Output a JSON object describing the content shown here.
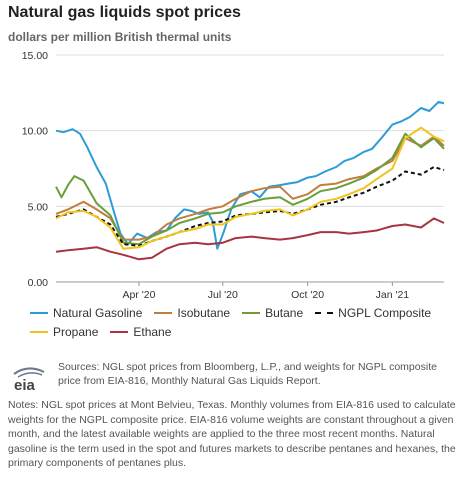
{
  "header": {
    "title": "Natural gas liquids spot prices",
    "subtitle": "dollars per million British thermal units"
  },
  "chart_data": {
    "type": "line",
    "title": "Natural gas liquids spot prices",
    "ylabel": "dollars per million British thermal units",
    "ylim": [
      0,
      15
    ],
    "yticks": [
      "0.00",
      "5.00",
      "10.00",
      "15.00"
    ],
    "xticks": [
      {
        "label": "Apr '20",
        "date": "2020-04-01"
      },
      {
        "label": "Jul '20",
        "date": "2020-07-01"
      },
      {
        "label": "Oct '20",
        "date": "2020-10-01"
      },
      {
        "label": "Jan '21",
        "date": "2021-01-01"
      }
    ],
    "xlim": [
      "2020-01-02",
      "2021-02-26"
    ],
    "grid": "horizontal",
    "legend_position": "bottom",
    "series": [
      {
        "name": "Natural Gasoline",
        "color": "#2c9cd6",
        "dash": "solid",
        "points": [
          [
            "2020-01-02",
            10.0
          ],
          [
            "2020-01-10",
            9.9
          ],
          [
            "2020-01-20",
            10.1
          ],
          [
            "2020-01-28",
            9.8
          ],
          [
            "2020-02-05",
            8.9
          ],
          [
            "2020-02-15",
            7.6
          ],
          [
            "2020-02-25",
            6.5
          ],
          [
            "2020-03-05",
            4.6
          ],
          [
            "2020-03-12",
            3.2
          ],
          [
            "2020-03-20",
            2.5
          ],
          [
            "2020-03-30",
            3.2
          ],
          [
            "2020-04-10",
            2.9
          ],
          [
            "2020-04-20",
            3.3
          ],
          [
            "2020-05-01",
            3.4
          ],
          [
            "2020-05-10",
            4.2
          ],
          [
            "2020-05-20",
            4.8
          ],
          [
            "2020-05-28",
            4.7
          ],
          [
            "2020-06-05",
            4.5
          ],
          [
            "2020-06-15",
            4.6
          ],
          [
            "2020-06-20",
            4.0
          ],
          [
            "2020-06-25",
            2.2
          ],
          [
            "2020-07-02",
            3.3
          ],
          [
            "2020-07-10",
            4.8
          ],
          [
            "2020-07-20",
            5.8
          ],
          [
            "2020-08-01",
            6.0
          ],
          [
            "2020-08-10",
            5.6
          ],
          [
            "2020-08-20",
            6.3
          ],
          [
            "2020-09-01",
            6.4
          ],
          [
            "2020-09-10",
            6.5
          ],
          [
            "2020-09-20",
            6.6
          ],
          [
            "2020-10-01",
            6.9
          ],
          [
            "2020-10-10",
            7.0
          ],
          [
            "2020-10-20",
            7.3
          ],
          [
            "2020-11-01",
            7.6
          ],
          [
            "2020-11-10",
            8.0
          ],
          [
            "2020-11-20",
            8.2
          ],
          [
            "2020-12-01",
            8.6
          ],
          [
            "2020-12-10",
            8.8
          ],
          [
            "2020-12-20",
            9.5
          ],
          [
            "2021-01-01",
            10.4
          ],
          [
            "2021-01-10",
            10.6
          ],
          [
            "2021-01-20",
            10.9
          ],
          [
            "2021-02-01",
            11.5
          ],
          [
            "2021-02-10",
            11.3
          ],
          [
            "2021-02-20",
            11.9
          ],
          [
            "2021-02-26",
            11.8
          ]
        ]
      },
      {
        "name": "Isobutane",
        "color": "#c27d3f",
        "dash": "solid",
        "points": [
          [
            "2020-01-02",
            4.5
          ],
          [
            "2020-01-15",
            4.8
          ],
          [
            "2020-02-01",
            5.3
          ],
          [
            "2020-02-15",
            4.8
          ],
          [
            "2020-03-01",
            4.2
          ],
          [
            "2020-03-15",
            2.8
          ],
          [
            "2020-04-01",
            2.8
          ],
          [
            "2020-04-15",
            3.0
          ],
          [
            "2020-05-01",
            3.8
          ],
          [
            "2020-05-15",
            4.2
          ],
          [
            "2020-06-01",
            4.5
          ],
          [
            "2020-06-15",
            4.8
          ],
          [
            "2020-07-01",
            5.0
          ],
          [
            "2020-07-15",
            5.5
          ],
          [
            "2020-08-01",
            6.0
          ],
          [
            "2020-08-15",
            6.2
          ],
          [
            "2020-09-01",
            6.3
          ],
          [
            "2020-09-15",
            5.5
          ],
          [
            "2020-10-01",
            5.8
          ],
          [
            "2020-10-15",
            6.4
          ],
          [
            "2020-11-01",
            6.5
          ],
          [
            "2020-11-15",
            6.8
          ],
          [
            "2020-12-01",
            7.0
          ],
          [
            "2020-12-15",
            7.5
          ],
          [
            "2021-01-01",
            8.0
          ],
          [
            "2021-01-15",
            9.5
          ],
          [
            "2021-02-01",
            9.0
          ],
          [
            "2021-02-15",
            9.6
          ],
          [
            "2021-02-26",
            9.0
          ]
        ]
      },
      {
        "name": "Butane",
        "color": "#6a9e3b",
        "dash": "solid",
        "points": [
          [
            "2020-01-02",
            6.3
          ],
          [
            "2020-01-08",
            5.6
          ],
          [
            "2020-01-15",
            6.4
          ],
          [
            "2020-01-22",
            7.0
          ],
          [
            "2020-02-01",
            6.7
          ],
          [
            "2020-02-15",
            5.2
          ],
          [
            "2020-03-01",
            4.4
          ],
          [
            "2020-03-15",
            2.6
          ],
          [
            "2020-04-01",
            2.5
          ],
          [
            "2020-04-15",
            3.0
          ],
          [
            "2020-05-01",
            3.4
          ],
          [
            "2020-05-15",
            3.9
          ],
          [
            "2020-06-01",
            4.2
          ],
          [
            "2020-06-15",
            4.5
          ],
          [
            "2020-07-01",
            4.6
          ],
          [
            "2020-07-15",
            5.0
          ],
          [
            "2020-08-01",
            5.3
          ],
          [
            "2020-08-15",
            5.5
          ],
          [
            "2020-09-01",
            5.6
          ],
          [
            "2020-09-15",
            5.1
          ],
          [
            "2020-10-01",
            5.5
          ],
          [
            "2020-10-15",
            6.0
          ],
          [
            "2020-11-01",
            6.2
          ],
          [
            "2020-11-15",
            6.5
          ],
          [
            "2020-12-01",
            6.9
          ],
          [
            "2020-12-15",
            7.4
          ],
          [
            "2021-01-01",
            8.2
          ],
          [
            "2021-01-15",
            9.8
          ],
          [
            "2021-02-01",
            8.9
          ],
          [
            "2021-02-15",
            9.5
          ],
          [
            "2021-02-26",
            8.8
          ]
        ]
      },
      {
        "name": "NGPL Composite",
        "color": "#111111",
        "dash": "dashed",
        "points": [
          [
            "2020-01-02",
            4.3
          ],
          [
            "2020-01-15",
            4.5
          ],
          [
            "2020-02-01",
            4.8
          ],
          [
            "2020-02-15",
            4.3
          ],
          [
            "2020-03-01",
            3.8
          ],
          [
            "2020-03-15",
            2.5
          ],
          [
            "2020-04-01",
            2.4
          ],
          [
            "2020-04-15",
            2.7
          ],
          [
            "2020-05-01",
            3.0
          ],
          [
            "2020-05-15",
            3.3
          ],
          [
            "2020-06-01",
            3.7
          ],
          [
            "2020-06-15",
            3.9
          ],
          [
            "2020-07-01",
            4.0
          ],
          [
            "2020-07-15",
            4.4
          ],
          [
            "2020-08-01",
            4.5
          ],
          [
            "2020-08-15",
            4.6
          ],
          [
            "2020-09-01",
            4.7
          ],
          [
            "2020-09-15",
            4.5
          ],
          [
            "2020-10-01",
            4.8
          ],
          [
            "2020-10-15",
            5.1
          ],
          [
            "2020-11-01",
            5.3
          ],
          [
            "2020-11-15",
            5.6
          ],
          [
            "2020-12-01",
            5.9
          ],
          [
            "2020-12-15",
            6.3
          ],
          [
            "2021-01-01",
            6.7
          ],
          [
            "2021-01-15",
            7.3
          ],
          [
            "2021-02-01",
            7.1
          ],
          [
            "2021-02-15",
            7.6
          ],
          [
            "2021-02-26",
            7.4
          ]
        ]
      },
      {
        "name": "Propane",
        "color": "#f0c419",
        "dash": "solid",
        "points": [
          [
            "2020-01-02",
            4.2
          ],
          [
            "2020-01-15",
            4.6
          ],
          [
            "2020-02-01",
            4.7
          ],
          [
            "2020-02-15",
            4.3
          ],
          [
            "2020-03-01",
            3.6
          ],
          [
            "2020-03-15",
            2.2
          ],
          [
            "2020-04-01",
            2.3
          ],
          [
            "2020-04-15",
            2.7
          ],
          [
            "2020-05-01",
            3.0
          ],
          [
            "2020-05-15",
            3.3
          ],
          [
            "2020-06-01",
            3.5
          ],
          [
            "2020-06-15",
            3.8
          ],
          [
            "2020-07-01",
            3.8
          ],
          [
            "2020-07-15",
            4.3
          ],
          [
            "2020-08-01",
            4.5
          ],
          [
            "2020-08-15",
            4.7
          ],
          [
            "2020-09-01",
            4.8
          ],
          [
            "2020-09-15",
            4.4
          ],
          [
            "2020-10-01",
            4.8
          ],
          [
            "2020-10-15",
            5.3
          ],
          [
            "2020-11-01",
            5.5
          ],
          [
            "2020-11-15",
            5.8
          ],
          [
            "2020-12-01",
            6.2
          ],
          [
            "2020-12-15",
            6.8
          ],
          [
            "2021-01-01",
            7.5
          ],
          [
            "2021-01-15",
            9.5
          ],
          [
            "2021-02-01",
            10.2
          ],
          [
            "2021-02-15",
            9.6
          ],
          [
            "2021-02-26",
            9.3
          ]
        ]
      },
      {
        "name": "Ethane",
        "color": "#a8343f",
        "dash": "solid",
        "points": [
          [
            "2020-01-02",
            2.0
          ],
          [
            "2020-01-15",
            2.1
          ],
          [
            "2020-02-01",
            2.2
          ],
          [
            "2020-02-15",
            2.3
          ],
          [
            "2020-03-01",
            2.0
          ],
          [
            "2020-03-15",
            1.8
          ],
          [
            "2020-04-01",
            1.5
          ],
          [
            "2020-04-15",
            1.6
          ],
          [
            "2020-05-01",
            2.2
          ],
          [
            "2020-05-15",
            2.5
          ],
          [
            "2020-06-01",
            2.6
          ],
          [
            "2020-06-15",
            2.5
          ],
          [
            "2020-07-01",
            2.6
          ],
          [
            "2020-07-15",
            2.9
          ],
          [
            "2020-08-01",
            3.0
          ],
          [
            "2020-08-15",
            2.9
          ],
          [
            "2020-09-01",
            2.8
          ],
          [
            "2020-09-15",
            2.9
          ],
          [
            "2020-10-01",
            3.1
          ],
          [
            "2020-10-15",
            3.3
          ],
          [
            "2020-11-01",
            3.3
          ],
          [
            "2020-11-15",
            3.2
          ],
          [
            "2020-12-01",
            3.3
          ],
          [
            "2020-12-15",
            3.4
          ],
          [
            "2021-01-01",
            3.7
          ],
          [
            "2021-01-15",
            3.8
          ],
          [
            "2021-02-01",
            3.6
          ],
          [
            "2021-02-15",
            4.2
          ],
          [
            "2021-02-26",
            3.9
          ]
        ]
      }
    ]
  },
  "footer": {
    "logo_text": "eia",
    "sources": "Sources: NGL spot prices from Bloomberg, L.P., and weights for NGPL composite price from EIA-816, Monthly Natural Gas Liquids Report.",
    "notes": "Notes: NGL spot prices at Mont Belvieu, Texas. Monthly volumes from EIA-816 used to calculate weights for the NGPL composite price. EIA-816 volume weights are constant throughout a given month, and the latest available weights are applied to the three most recent months. Natural gasoline is the term used in the spot and futures markets to describe pentanes and hexanes, the primary components of pentanes plus."
  }
}
